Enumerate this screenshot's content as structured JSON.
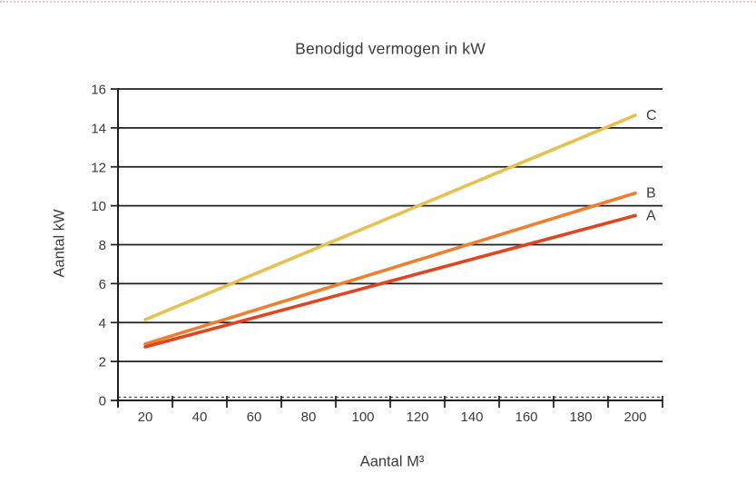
{
  "page": {
    "background": "#ffffff",
    "top_border_color": "#f3c6ae"
  },
  "chart_data": {
    "type": "line",
    "title": "Benodigd vermogen in kW",
    "xlabel": "Aantal M³",
    "ylabel": "Aantal kW",
    "xlim": [
      10,
      210
    ],
    "ylim": [
      0,
      16
    ],
    "x_ticks": [
      20,
      40,
      60,
      80,
      100,
      120,
      140,
      160,
      180,
      200
    ],
    "y_ticks": [
      0,
      2,
      4,
      6,
      8,
      10,
      12,
      14,
      16
    ],
    "grid": "horizontal-solid",
    "legend_position": "line-end-labels",
    "axis_color": "#1f1f1f",
    "text_color": "#3c3c3b",
    "series": [
      {
        "name": "C",
        "color": "#e6c14e",
        "x": [
          20,
          200
        ],
        "values": [
          4.15,
          14.65
        ]
      },
      {
        "name": "B",
        "color": "#f07e2c",
        "x": [
          20,
          200
        ],
        "values": [
          2.9,
          10.65
        ]
      },
      {
        "name": "A",
        "color": "#e2441f",
        "x": [
          20,
          200
        ],
        "values": [
          2.75,
          9.5
        ]
      }
    ]
  }
}
